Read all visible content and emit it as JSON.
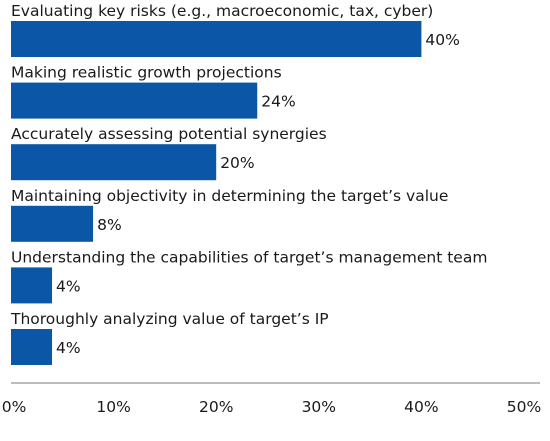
{
  "chart_data": {
    "type": "bar",
    "orientation": "horizontal",
    "categories": [
      "Evaluating key risks (e.g., macroeconomic, tax, cyber)",
      "Making realistic growth projections",
      "Accurately assessing potential synergies",
      "Maintaining objectivity in determining the target’s value",
      "Understanding the capabilities of target’s management team",
      "Thoroughly analyzing value of target’s IP"
    ],
    "values": [
      40,
      24,
      20,
      8,
      4,
      4
    ],
    "value_labels": [
      "40%",
      "24%",
      "20%",
      "8%",
      "4%",
      "4%"
    ],
    "xlim": [
      0,
      50
    ],
    "xticks": [
      0,
      10,
      20,
      30,
      40,
      50
    ],
    "xtick_labels": [
      "0%",
      "10%",
      "20%",
      "30%",
      "40%",
      "50%"
    ],
    "title": "",
    "xlabel": "",
    "ylabel": "",
    "bar_color": "#0b56a6",
    "grid": false,
    "legend": "none"
  }
}
